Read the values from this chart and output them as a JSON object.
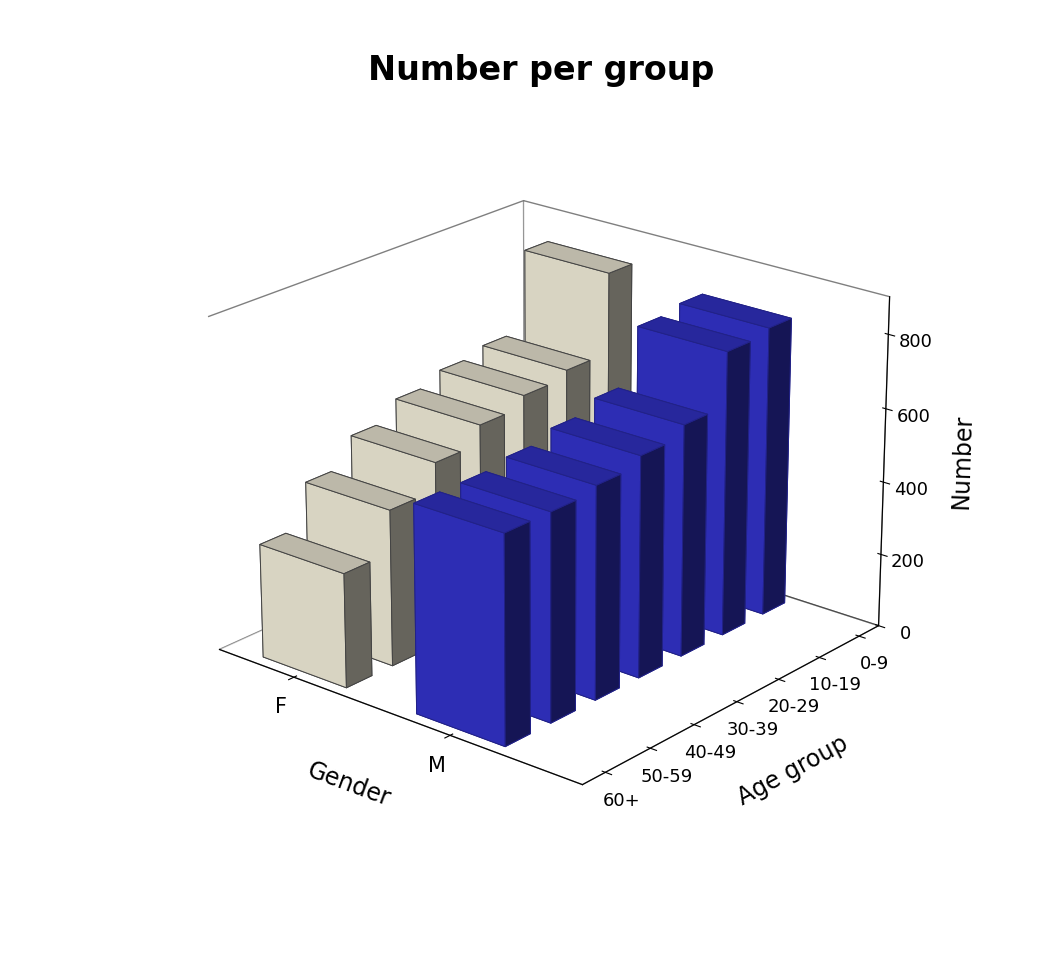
{
  "title": "Number per group",
  "age_groups": [
    "60+",
    "50-59",
    "40-49",
    "30-39",
    "20-29",
    "10-19",
    "0-9"
  ],
  "genders": [
    "F",
    "M"
  ],
  "female_values": [
    310,
    425,
    500,
    550,
    580,
    600,
    820
  ],
  "male_values": [
    560,
    560,
    575,
    600,
    630,
    775,
    790
  ],
  "female_color": "#F5F0DC",
  "male_color": "#3333CC",
  "female_edge_color": "#444444",
  "male_edge_color": "#222288",
  "ylabel": "Number",
  "age_label": "Age group",
  "gender_label": "Gender",
  "zlim": [
    0,
    900
  ],
  "zticks": [
    0,
    200,
    400,
    600,
    800
  ],
  "bar_width": 0.55,
  "bar_depth": 0.55,
  "title_fontsize": 24,
  "label_fontsize": 17,
  "tick_fontsize": 13,
  "elev": 22,
  "azim": -50
}
